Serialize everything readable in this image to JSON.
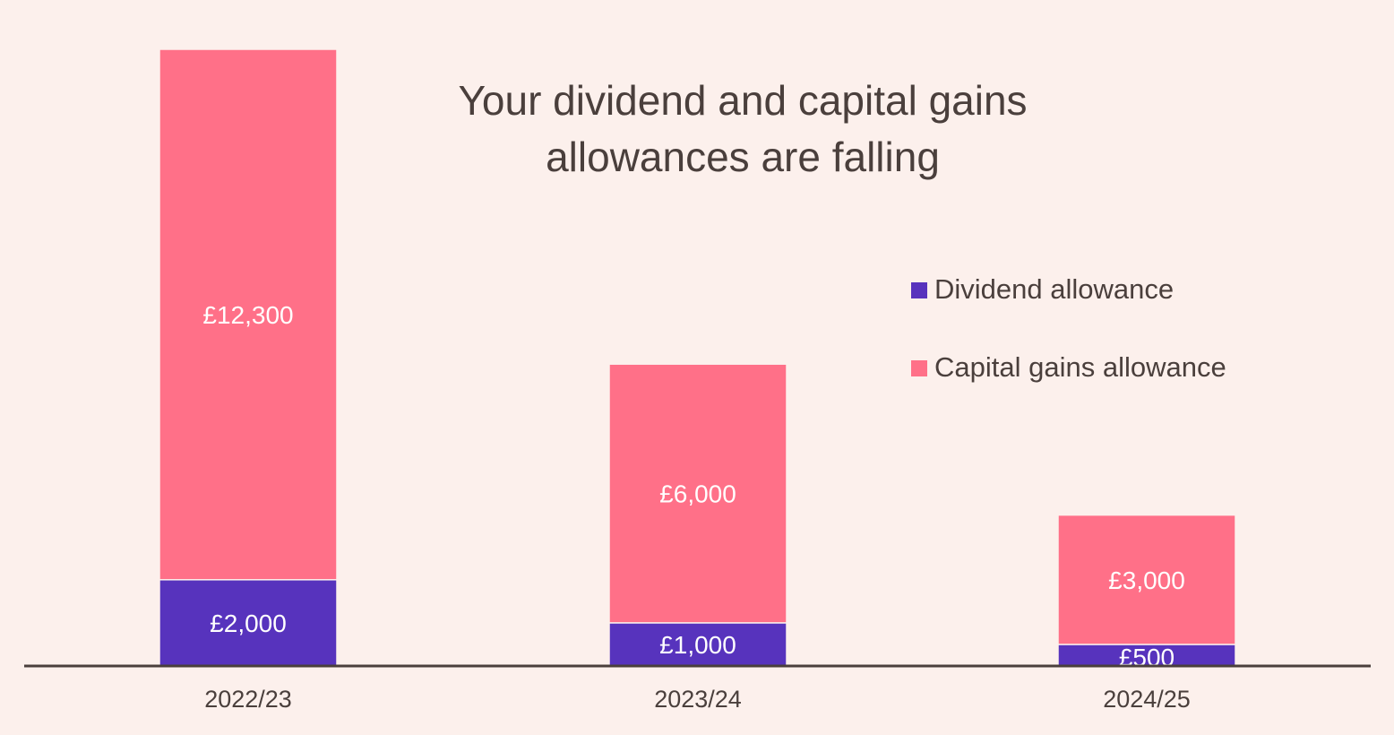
{
  "chart_data": {
    "type": "bar",
    "stacked": true,
    "title": [
      "Your dividend and capital gains",
      "allowances are falling"
    ],
    "categories": [
      "2022/23",
      "2023/24",
      "2024/25"
    ],
    "series": [
      {
        "name": "Dividend allowance",
        "color": "#5733bd",
        "values": [
          2000,
          1000,
          500
        ],
        "labels": [
          "£2,000",
          "£1,000",
          "£500"
        ]
      },
      {
        "name": "Capital gains allowance",
        "color": "#ff7088",
        "values": [
          12300,
          6000,
          3000
        ],
        "labels": [
          "£12,300",
          "£6,000",
          "£3,000"
        ]
      }
    ],
    "ylim": [
      0,
      14300
    ],
    "grid": false,
    "legend_position": "right"
  },
  "colors": {
    "background": "#fcf0ec",
    "text": "#4a3f3c",
    "axis": "#4a3f3c"
  }
}
